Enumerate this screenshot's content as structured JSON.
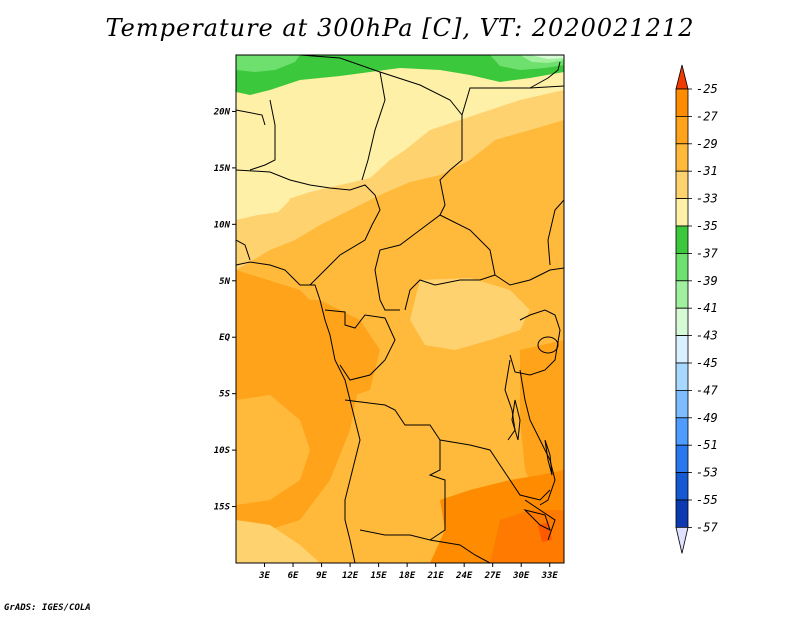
{
  "title": "Temperature at 300hPa [C], VT: 2020021212",
  "credit": "GrADS: IGES/COLA",
  "map": {
    "lon_range": [
      0,
      34.5
    ],
    "lat_range": [
      -20,
      25
    ],
    "lon_ticks": [
      {
        "value": 3,
        "label": "3E"
      },
      {
        "value": 6,
        "label": "6E"
      },
      {
        "value": 9,
        "label": "9E"
      },
      {
        "value": 12,
        "label": "12E"
      },
      {
        "value": 15,
        "label": "15E"
      },
      {
        "value": 18,
        "label": "18E"
      },
      {
        "value": 21,
        "label": "21E"
      },
      {
        "value": 24,
        "label": "24E"
      },
      {
        "value": 27,
        "label": "27E"
      },
      {
        "value": 30,
        "label": "30E"
      },
      {
        "value": 33,
        "label": "33E"
      }
    ],
    "lat_ticks": [
      {
        "value": 20,
        "label": "20N"
      },
      {
        "value": 15,
        "label": "15N"
      },
      {
        "value": 10,
        "label": "10N"
      },
      {
        "value": 5,
        "label": "5N"
      },
      {
        "value": 0,
        "label": "EQ"
      },
      {
        "value": -5,
        "label": "5S"
      },
      {
        "value": -10,
        "label": "10S"
      },
      {
        "value": -15,
        "label": "15S"
      }
    ]
  },
  "colorbar": {
    "labels": [
      "-25",
      "-27",
      "-29",
      "-31",
      "-33",
      "-35",
      "-37",
      "-39",
      "-41",
      "-43",
      "-45",
      "-47",
      "-49",
      "-51",
      "-53",
      "-55",
      "-57"
    ],
    "colors": [
      "#ff5a00",
      "#ff8c00",
      "#ffa41a",
      "#ffba3c",
      "#ffd270",
      "#fff0a8",
      "#3cc83c",
      "#6ee06e",
      "#a0f0a0",
      "#d6fad6",
      "#d8f0ff",
      "#a8d8ff",
      "#7cbcff",
      "#4e9cff",
      "#2a78f0",
      "#1658d2",
      "#0c38b0",
      "#061878"
    ],
    "top_color": "#f03c00",
    "bottom_color": "#e0e0ff"
  }
}
